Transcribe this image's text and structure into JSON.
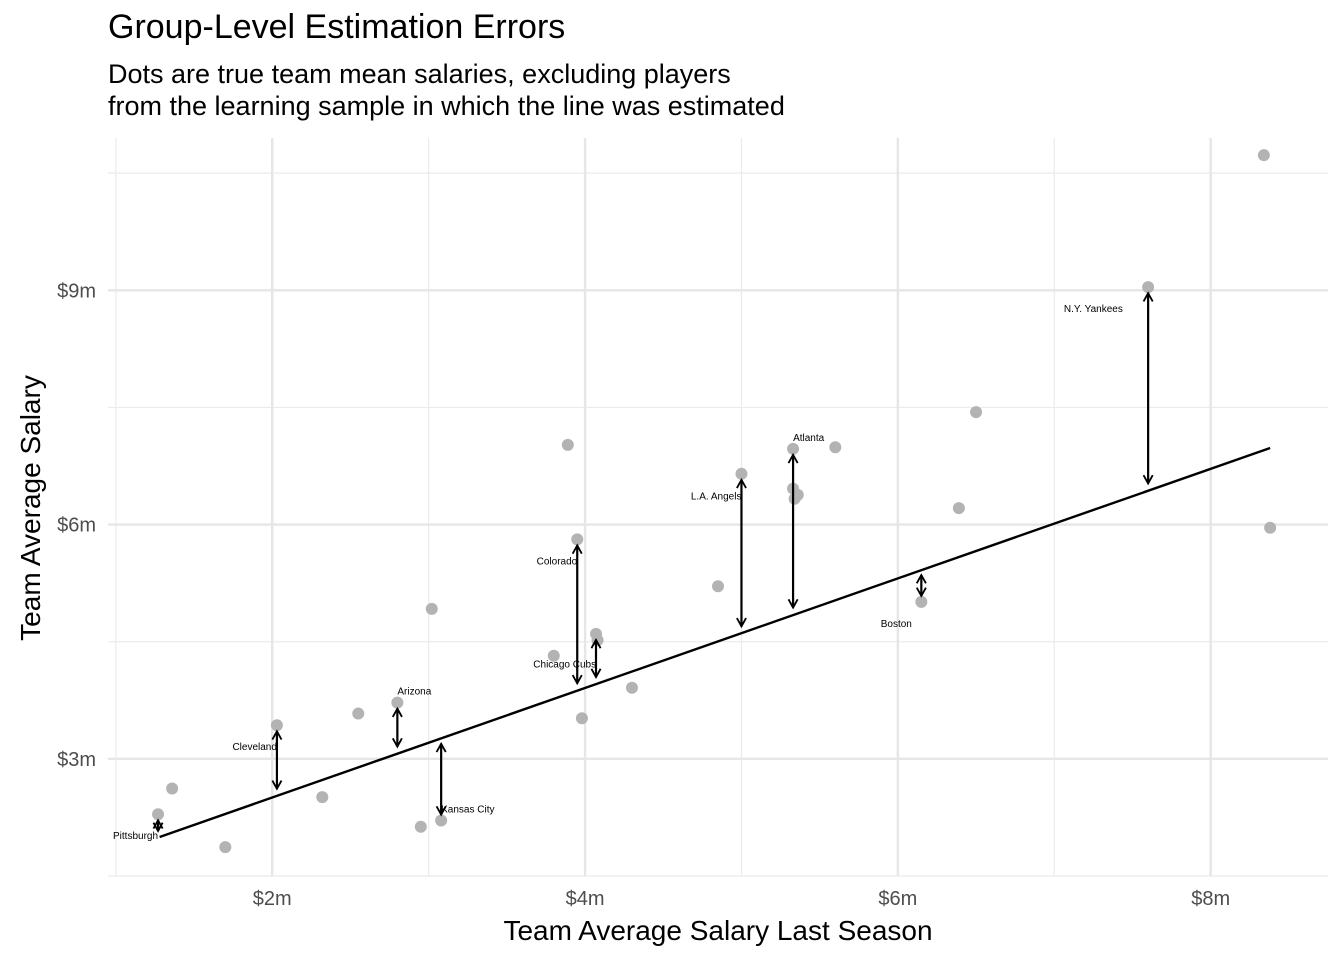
{
  "chart_data": {
    "type": "scatter",
    "title": "Group-Level Estimation Errors",
    "subtitle": [
      "Dots are true team mean salaries, excluding players",
      "from the learning sample in which the line was estimated"
    ],
    "xlabel": "Team Average Salary Last Season",
    "ylabel": "Team Average Salary",
    "x_ticks": [
      {
        "value": 2,
        "label": "$2m"
      },
      {
        "value": 4,
        "label": "$4m"
      },
      {
        "value": 6,
        "label": "$6m"
      },
      {
        "value": 8,
        "label": "$8m"
      }
    ],
    "y_ticks": [
      {
        "value": 3,
        "label": "$3m"
      },
      {
        "value": 6,
        "label": "$6m"
      },
      {
        "value": 9,
        "label": "$9m"
      }
    ],
    "xlim": [
      0.95,
      8.75
    ],
    "ylim": [
      1.5,
      10.95
    ],
    "grid": true,
    "point_color": "#b3b3b3",
    "line_color": "#000000",
    "fit_line": {
      "x": [
        1.28,
        8.38
      ],
      "y": [
        2.0,
        6.98
      ]
    },
    "points": [
      {
        "x": 1.27,
        "y": 2.29
      },
      {
        "x": 1.36,
        "y": 2.62
      },
      {
        "x": 1.7,
        "y": 1.87
      },
      {
        "x": 2.03,
        "y": 3.43
      },
      {
        "x": 2.32,
        "y": 2.51
      },
      {
        "x": 2.55,
        "y": 3.58
      },
      {
        "x": 2.8,
        "y": 3.72
      },
      {
        "x": 2.95,
        "y": 2.13
      },
      {
        "x": 3.02,
        "y": 4.92
      },
      {
        "x": 3.08,
        "y": 2.21
      },
      {
        "x": 3.8,
        "y": 4.32
      },
      {
        "x": 3.89,
        "y": 7.02
      },
      {
        "x": 3.95,
        "y": 5.81
      },
      {
        "x": 3.98,
        "y": 3.52
      },
      {
        "x": 4.07,
        "y": 4.6
      },
      {
        "x": 4.08,
        "y": 4.52
      },
      {
        "x": 4.3,
        "y": 3.91
      },
      {
        "x": 4.85,
        "y": 5.21
      },
      {
        "x": 5.0,
        "y": 6.65
      },
      {
        "x": 5.33,
        "y": 6.97
      },
      {
        "x": 5.33,
        "y": 6.46
      },
      {
        "x": 5.34,
        "y": 6.33
      },
      {
        "x": 5.36,
        "y": 6.38
      },
      {
        "x": 5.6,
        "y": 6.99
      },
      {
        "x": 6.15,
        "y": 5.01
      },
      {
        "x": 6.39,
        "y": 6.21
      },
      {
        "x": 6.5,
        "y": 7.44
      },
      {
        "x": 7.6,
        "y": 9.04
      },
      {
        "x": 8.34,
        "y": 10.73
      },
      {
        "x": 8.38,
        "y": 5.96
      }
    ],
    "teams": [
      {
        "name": "Pittsburgh",
        "x": 1.27,
        "y_true": 2.29,
        "y_fit": 2.0,
        "label_x": 1.27,
        "label_y": 2.01,
        "anchor": "end"
      },
      {
        "name": "Cleveland",
        "x": 2.03,
        "y_true": 3.43,
        "y_fit": 2.54,
        "label_x": 2.03,
        "label_y": 3.15,
        "anchor": "end"
      },
      {
        "name": "Arizona",
        "x": 2.8,
        "y_true": 3.72,
        "y_fit": 3.08,
        "label_x": 2.8,
        "label_y": 3.86,
        "anchor": "start"
      },
      {
        "name": "Kansas City",
        "x": 3.08,
        "y_true": 2.21,
        "y_fit": 3.27,
        "label_x": 3.08,
        "label_y": 2.35,
        "anchor": "start"
      },
      {
        "name": "Colorado",
        "x": 3.95,
        "y_true": 5.81,
        "y_fit": 3.89,
        "label_x": 3.95,
        "label_y": 5.53,
        "anchor": "end"
      },
      {
        "name": "Chicago Cubs",
        "x": 4.07,
        "y_true": 4.6,
        "y_fit": 3.97,
        "label_x": 3.87,
        "label_y": 4.21,
        "anchor": "middle"
      },
      {
        "name": "L.A. Angels",
        "x": 5.0,
        "y_true": 6.65,
        "y_fit": 4.62,
        "label_x": 5.0,
        "label_y": 6.36,
        "anchor": "end"
      },
      {
        "name": "Atlanta",
        "x": 5.33,
        "y_true": 6.97,
        "y_fit": 4.86,
        "label_x": 5.33,
        "label_y": 7.11,
        "anchor": "start"
      },
      {
        "name": "Boston",
        "x": 6.15,
        "y_true": 5.01,
        "y_fit": 5.43,
        "label_x": 5.99,
        "label_y": 4.73,
        "anchor": "middle"
      },
      {
        "name": "N.Y. Yankees",
        "x": 7.6,
        "y_true": 9.04,
        "y_fit": 6.45,
        "label_x": 7.25,
        "label_y": 8.76,
        "anchor": "middle"
      }
    ]
  }
}
